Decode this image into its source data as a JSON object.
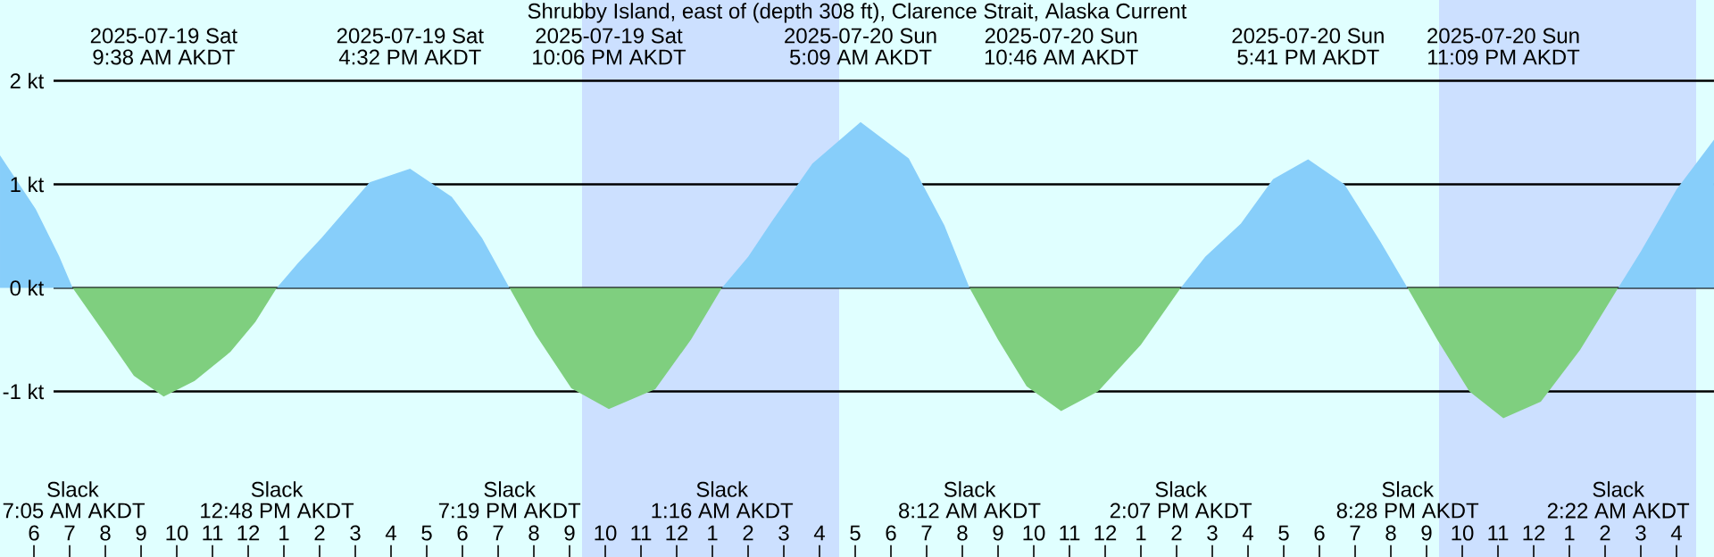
{
  "chart_data": {
    "type": "area",
    "title": "Shrubby Island, east of (depth 308 ft), Clarence Strait, Alaska Current",
    "xlim": [
      "2025-07-19T05:03",
      "2025-07-21T05:03"
    ],
    "ylim": [
      -2.6,
      2.78
    ],
    "xticks": [
      {
        "value": "2025-07-19T06:00",
        "label": "6"
      },
      {
        "value": "2025-07-19T07:00",
        "label": "7"
      },
      {
        "value": "2025-07-19T08:00",
        "label": "8"
      },
      {
        "value": "2025-07-19T09:00",
        "label": "9"
      },
      {
        "value": "2025-07-19T10:00",
        "label": "10"
      },
      {
        "value": "2025-07-19T11:00",
        "label": "11"
      },
      {
        "value": "2025-07-19T12:00",
        "label": "12"
      },
      {
        "value": "2025-07-19T13:00",
        "label": "1"
      },
      {
        "value": "2025-07-19T14:00",
        "label": "2"
      },
      {
        "value": "2025-07-19T15:00",
        "label": "3"
      },
      {
        "value": "2025-07-19T16:00",
        "label": "4"
      },
      {
        "value": "2025-07-19T17:00",
        "label": "5"
      },
      {
        "value": "2025-07-19T18:00",
        "label": "6"
      },
      {
        "value": "2025-07-19T19:00",
        "label": "7"
      },
      {
        "value": "2025-07-19T20:00",
        "label": "8"
      },
      {
        "value": "2025-07-19T21:00",
        "label": "9"
      },
      {
        "value": "2025-07-19T22:00",
        "label": "10"
      },
      {
        "value": "2025-07-19T23:00",
        "label": "11"
      },
      {
        "value": "2025-07-20T00:00",
        "label": "12"
      },
      {
        "value": "2025-07-20T01:00",
        "label": "1"
      },
      {
        "value": "2025-07-20T02:00",
        "label": "2"
      },
      {
        "value": "2025-07-20T03:00",
        "label": "3"
      },
      {
        "value": "2025-07-20T04:00",
        "label": "4"
      },
      {
        "value": "2025-07-20T05:00",
        "label": "5"
      },
      {
        "value": "2025-07-20T06:00",
        "label": "6"
      },
      {
        "value": "2025-07-20T07:00",
        "label": "7"
      },
      {
        "value": "2025-07-20T08:00",
        "label": "8"
      },
      {
        "value": "2025-07-20T09:00",
        "label": "9"
      },
      {
        "value": "2025-07-20T10:00",
        "label": "10"
      },
      {
        "value": "2025-07-20T11:00",
        "label": "11"
      },
      {
        "value": "2025-07-20T12:00",
        "label": "12"
      },
      {
        "value": "2025-07-20T13:00",
        "label": "1"
      },
      {
        "value": "2025-07-20T14:00",
        "label": "2"
      },
      {
        "value": "2025-07-20T15:00",
        "label": "3"
      },
      {
        "value": "2025-07-20T16:00",
        "label": "4"
      },
      {
        "value": "2025-07-20T17:00",
        "label": "5"
      },
      {
        "value": "2025-07-20T18:00",
        "label": "6"
      },
      {
        "value": "2025-07-20T19:00",
        "label": "7"
      },
      {
        "value": "2025-07-20T20:00",
        "label": "8"
      },
      {
        "value": "2025-07-20T21:00",
        "label": "9"
      },
      {
        "value": "2025-07-20T22:00",
        "label": "10"
      },
      {
        "value": "2025-07-20T23:00",
        "label": "11"
      },
      {
        "value": "2025-07-21T00:00",
        "label": "12"
      },
      {
        "value": "2025-07-21T01:00",
        "label": "1"
      },
      {
        "value": "2025-07-21T02:00",
        "label": "2"
      },
      {
        "value": "2025-07-21T03:00",
        "label": "3"
      },
      {
        "value": "2025-07-21T04:00",
        "label": "4"
      }
    ],
    "yticks": [
      {
        "value": -1,
        "label": "-1 kt"
      },
      {
        "value": 0,
        "label": "0 kt"
      },
      {
        "value": 1,
        "label": "1 kt"
      },
      {
        "value": 2,
        "label": "2 kt"
      }
    ],
    "grid": "y",
    "series": [
      {
        "color": "#87cefa",
        "x": [
          "2025-07-19T05:03",
          "2025-07-19T06:03",
          "2025-07-19T06:42",
          "2025-07-19T07:05",
          "2025-07-19T12:48",
          "2025-07-19T13:24",
          "2025-07-19T14:03",
          "2025-07-19T15:24",
          "2025-07-19T16:32",
          "2025-07-19T17:42",
          "2025-07-19T18:33",
          "2025-07-19T19:19",
          "2025-07-20T01:16",
          "2025-07-20T02:00",
          "2025-07-20T02:42",
          "2025-07-20T03:48",
          "2025-07-20T05:09",
          "2025-07-20T06:30",
          "2025-07-20T07:30",
          "2025-07-20T08:12",
          "2025-07-20T14:07",
          "2025-07-20T14:48",
          "2025-07-20T15:48",
          "2025-07-20T16:42",
          "2025-07-20T17:41",
          "2025-07-20T18:42",
          "2025-07-20T19:42",
          "2025-07-20T20:28",
          "2025-07-21T02:22",
          "2025-07-21T03:00",
          "2025-07-21T04:00",
          "2025-07-21T05:03"
        ],
        "values": [
          1.28,
          0.76,
          0.31,
          0,
          0,
          0.24,
          0.48,
          1.02,
          1.15,
          0.88,
          0.48,
          0,
          0,
          0.3,
          0.66,
          1.2,
          1.6,
          1.25,
          0.6,
          0,
          0,
          0.3,
          0.62,
          1.05,
          1.24,
          1.0,
          0.45,
          0,
          0,
          0.35,
          0.95,
          1.43
        ]
      },
      {
        "color": "#7fcf7f",
        "x": [
          "2025-07-19T07:05",
          "2025-07-19T08:00",
          "2025-07-19T08:48",
          "2025-07-19T09:38",
          "2025-07-19T10:30",
          "2025-07-19T11:30",
          "2025-07-19T12:12",
          "2025-07-19T12:48",
          "2025-07-19T19:19",
          "2025-07-19T20:03",
          "2025-07-19T21:03",
          "2025-07-19T22:06",
          "2025-07-19T23:24",
          "2025-07-20T00:24",
          "2025-07-20T01:16",
          "2025-07-20T08:12",
          "2025-07-20T09:00",
          "2025-07-20T09:48",
          "2025-07-20T10:46",
          "2025-07-20T11:48",
          "2025-07-20T13:00",
          "2025-07-20T14:07",
          "2025-07-20T20:28",
          "2025-07-20T21:18",
          "2025-07-20T22:12",
          "2025-07-20T23:09",
          "2025-07-21T00:12",
          "2025-07-21T01:18",
          "2025-07-21T02:22"
        ],
        "values": [
          0,
          -0.45,
          -0.85,
          -1.05,
          -0.9,
          -0.62,
          -0.33,
          0,
          0,
          -0.45,
          -0.97,
          -1.17,
          -0.98,
          -0.5,
          0,
          0,
          -0.5,
          -0.95,
          -1.19,
          -1.0,
          -0.55,
          0,
          0,
          -0.5,
          -1.0,
          -1.26,
          -1.1,
          -0.6,
          0
        ]
      }
    ],
    "bands": [
      {
        "axis": "x",
        "from": "2025-07-19T21:21",
        "to": "2025-07-20T04:33",
        "color": "#cce0ff"
      },
      {
        "axis": "x",
        "from": "2025-07-20T21:21",
        "to": "2025-07-21T04:33",
        "color": "#cce0ff"
      }
    ],
    "annotations": [
      "2025-07-19 Sat",
      "9:38 AM AKDT",
      "2025-07-19 Sat",
      "4:32 PM AKDT",
      "2025-07-19 Sat",
      "10:06 PM AKDT",
      "2025-07-20 Sun",
      "5:09 AM AKDT",
      "2025-07-20 Sun",
      "10:46 AM AKDT",
      "2025-07-20 Sun",
      "5:41 PM AKDT",
      "2025-07-20 Sun",
      "11:09 PM AKDT",
      "Slack",
      "7:05 AM AKDT",
      "Slack",
      "12:48 PM AKDT",
      "Slack",
      "7:19 PM AKDT",
      "Slack",
      "1:16 AM AKDT",
      "Slack",
      "8:12 AM AKDT",
      "Slack",
      "2:07 PM AKDT",
      "Slack",
      "8:28 PM AKDT",
      "Slack",
      "2:22 AM AKDT"
    ]
  }
}
